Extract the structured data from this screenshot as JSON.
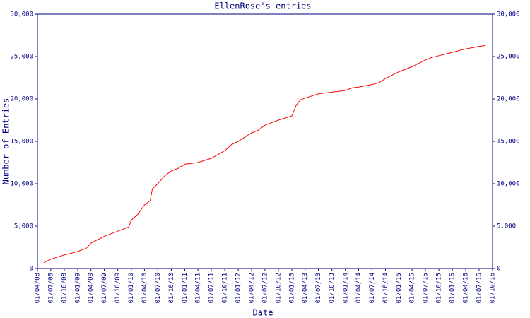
{
  "chart_data": {
    "type": "line",
    "title": "EllenRose's entries",
    "x_label": "Date",
    "y_label": "Number of Entries",
    "axis_color": "#000080",
    "xlim": [
      "2008-04-01",
      "2016-10-01"
    ],
    "xticks": [
      {
        "value": "2008-04-01",
        "label": "01/04/08"
      },
      {
        "value": "2008-07-01",
        "label": "01/07/08"
      },
      {
        "value": "2008-10-01",
        "label": "01/10/08"
      },
      {
        "value": "2009-01-01",
        "label": "01/01/09"
      },
      {
        "value": "2009-04-01",
        "label": "01/04/09"
      },
      {
        "value": "2009-07-01",
        "label": "01/07/09"
      },
      {
        "value": "2009-10-01",
        "label": "01/10/09"
      },
      {
        "value": "2010-01-01",
        "label": "01/01/10"
      },
      {
        "value": "2010-04-01",
        "label": "01/04/10"
      },
      {
        "value": "2010-07-01",
        "label": "01/07/10"
      },
      {
        "value": "2010-10-01",
        "label": "01/10/10"
      },
      {
        "value": "2011-01-01",
        "label": "01/01/11"
      },
      {
        "value": "2011-04-01",
        "label": "01/04/11"
      },
      {
        "value": "2011-07-01",
        "label": "01/07/11"
      },
      {
        "value": "2011-10-01",
        "label": "01/10/11"
      },
      {
        "value": "2012-01-01",
        "label": "01/01/12"
      },
      {
        "value": "2012-04-01",
        "label": "01/04/12"
      },
      {
        "value": "2012-07-01",
        "label": "01/07/12"
      },
      {
        "value": "2012-10-01",
        "label": "01/10/12"
      },
      {
        "value": "2013-01-01",
        "label": "01/01/13"
      },
      {
        "value": "2013-04-01",
        "label": "01/04/13"
      },
      {
        "value": "2013-07-01",
        "label": "01/07/13"
      },
      {
        "value": "2013-10-01",
        "label": "01/10/13"
      },
      {
        "value": "2014-01-01",
        "label": "01/01/14"
      },
      {
        "value": "2014-04-01",
        "label": "01/04/14"
      },
      {
        "value": "2014-07-01",
        "label": "01/07/14"
      },
      {
        "value": "2014-10-01",
        "label": "01/10/14"
      },
      {
        "value": "2015-01-01",
        "label": "01/01/15"
      },
      {
        "value": "2015-04-01",
        "label": "01/04/15"
      },
      {
        "value": "2015-07-01",
        "label": "01/07/15"
      },
      {
        "value": "2015-10-01",
        "label": "01/10/15"
      },
      {
        "value": "2016-01-01",
        "label": "01/01/16"
      },
      {
        "value": "2016-04-01",
        "label": "01/04/16"
      },
      {
        "value": "2016-07-01",
        "label": "01/07/16"
      },
      {
        "value": "2016-10-01",
        "label": "01/10/16"
      }
    ],
    "ylim": [
      0,
      30000
    ],
    "yticks": [
      0,
      {
        "value": 5000,
        "label": "5,000"
      },
      {
        "value": 10000,
        "label": "10,000"
      },
      {
        "value": 15000,
        "label": "15,000"
      },
      {
        "value": 20000,
        "label": "20,000"
      },
      {
        "value": 25000,
        "label": "25,000"
      },
      {
        "value": 30000,
        "label": "30,000"
      }
    ],
    "y2lim": [
      0,
      30000
    ],
    "y2ticks": [
      0,
      {
        "value": 5000,
        "label": "5,000"
      },
      {
        "value": 10000,
        "label": "10,000"
      },
      {
        "value": 15000,
        "label": "15,000"
      },
      {
        "value": 20000,
        "label": "20,000"
      },
      {
        "value": 25000,
        "label": "25,000"
      },
      {
        "value": 30000,
        "label": "30,000"
      }
    ],
    "x": [
      "2008-05-15",
      "2008-07-01",
      "2008-10-01",
      "2009-01-01",
      "2009-03-01",
      "2009-04-01",
      "2009-07-01",
      "2009-10-01",
      "2009-12-15",
      "2010-01-01",
      "2010-02-15",
      "2010-04-01",
      "2010-05-10",
      "2010-05-25",
      "2010-07-01",
      "2010-08-15",
      "2010-10-01",
      "2010-11-15",
      "2011-01-01",
      "2011-04-01",
      "2011-07-01",
      "2011-10-01",
      "2011-11-15",
      "2012-01-01",
      "2012-04-01",
      "2012-05-15",
      "2012-07-01",
      "2012-10-01",
      "2013-01-01",
      "2013-02-01",
      "2013-03-01",
      "2013-04-01",
      "2013-07-01",
      "2013-10-01",
      "2014-01-01",
      "2014-02-15",
      "2014-04-01",
      "2014-07-01",
      "2014-08-15",
      "2014-10-01",
      "2015-01-01",
      "2015-04-01",
      "2015-07-01",
      "2015-08-15",
      "2015-10-01",
      "2016-01-01",
      "2016-04-01",
      "2016-07-01",
      "2016-08-15"
    ],
    "series": [
      {
        "name": "Entries",
        "color": "#ff0000",
        "values": [
          700,
          1100,
          1600,
          2000,
          2400,
          3000,
          3800,
          4400,
          4900,
          5700,
          6400,
          7500,
          8000,
          9400,
          10000,
          10900,
          11500,
          11800,
          12300,
          12500,
          13000,
          13900,
          14600,
          15000,
          16000,
          16300,
          16900,
          17500,
          18000,
          19300,
          19900,
          20100,
          20600,
          20800,
          21000,
          21300,
          21400,
          21700,
          21900,
          22400,
          23200,
          23800,
          24600,
          24900,
          25100,
          25500,
          25900,
          26200,
          26300
        ]
      }
    ]
  }
}
